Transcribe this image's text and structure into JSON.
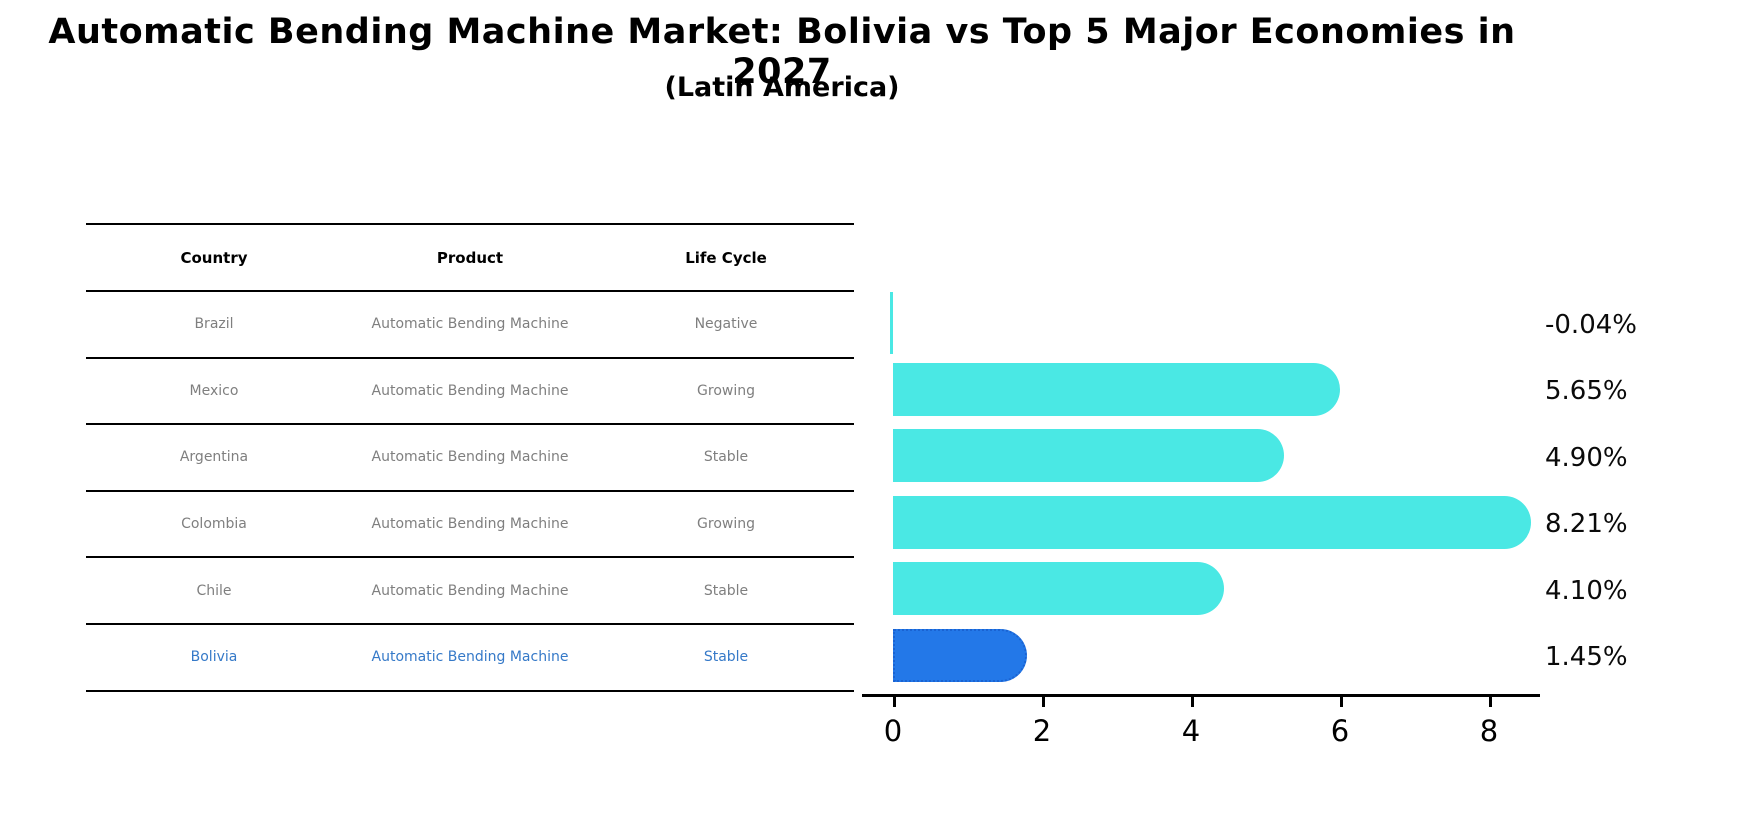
{
  "header": {
    "title": "Automatic Bending Machine Market: Bolivia vs Top 5 Major Economies in 2027",
    "subtitle": "(Latin America)"
  },
  "table": {
    "columns": [
      "Country",
      "Product",
      "Life Cycle"
    ],
    "rows": [
      {
        "country": "Brazil",
        "product": "Automatic Bending Machine",
        "life_cycle": "Negative",
        "highlight": false
      },
      {
        "country": "Mexico",
        "product": "Automatic Bending Machine",
        "life_cycle": "Growing",
        "highlight": false
      },
      {
        "country": "Argentina",
        "product": "Automatic Bending Machine",
        "life_cycle": "Stable",
        "highlight": false
      },
      {
        "country": "Colombia",
        "product": "Automatic Bending Machine",
        "life_cycle": "Growing",
        "highlight": false
      },
      {
        "country": "Chile",
        "product": "Automatic Bending Machine",
        "life_cycle": "Stable",
        "highlight": false
      },
      {
        "country": "Bolivia",
        "product": "Automatic Bending Machine",
        "life_cycle": "Stable",
        "highlight": true
      }
    ]
  },
  "chart_data": {
    "type": "bar",
    "orientation": "horizontal",
    "categories": [
      "Brazil",
      "Mexico",
      "Argentina",
      "Colombia",
      "Chile",
      "Bolivia"
    ],
    "values": [
      -0.04,
      5.65,
      4.9,
      8.21,
      4.1,
      1.45
    ],
    "value_labels": [
      "-0.04%",
      "5.65%",
      "4.90%",
      "8.21%",
      "4.10%",
      "1.45%"
    ],
    "x_ticks": [
      "0",
      "2",
      "4",
      "6",
      "8"
    ],
    "xlim": [
      -0.45,
      8.7
    ],
    "grid": false,
    "legend": false,
    "bar_color": "#4AE8E4",
    "highlight_color": "#2378E8",
    "highlight_index": 5,
    "highlight_text_color": "#3579C8"
  }
}
